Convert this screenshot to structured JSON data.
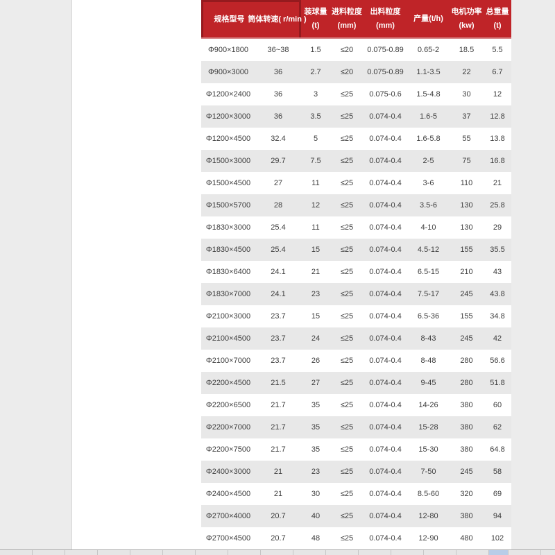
{
  "colors": {
    "header-red": "#bf2428",
    "dark-red": "#951a1e",
    "header-pink": "#d98b8d",
    "stripe-gray": "#e8e8e8",
    "margin-gray": "#ececec",
    "strip-gray": "#e6e6e6",
    "active-blue": "#b9cde8",
    "text-dark": "#3d3d3d"
  },
  "table": {
    "headers": [
      {
        "title": "规格型号",
        "unit": ""
      },
      {
        "title": "筒体转速( r/min )",
        "unit": ""
      },
      {
        "title": "装球量",
        "unit": "(t)"
      },
      {
        "title": "进料粒度",
        "unit": "(mm)"
      },
      {
        "title": "出料粒度",
        "unit": "(mm)"
      },
      {
        "title": "产量(t/h)",
        "unit": ""
      },
      {
        "title": "电机功率",
        "unit": "(kw)"
      },
      {
        "title": "总重量",
        "unit": "(t)"
      }
    ],
    "rows": [
      [
        "Φ900×1800",
        "36~38",
        "1.5",
        "≤20",
        "0.075-0.89",
        "0.65-2",
        "18.5",
        "5.5"
      ],
      [
        "Φ900×3000",
        "36",
        "2.7",
        "≤20",
        "0.075-0.89",
        "1.1-3.5",
        "22",
        "6.7"
      ],
      [
        "Φ1200×2400",
        "36",
        "3",
        "≤25",
        "0.075-0.6",
        "1.5-4.8",
        "30",
        "12"
      ],
      [
        "Φ1200×3000",
        "36",
        "3.5",
        "≤25",
        "0.074-0.4",
        "1.6-5",
        "37",
        "12.8"
      ],
      [
        "Φ1200×4500",
        "32.4",
        "5",
        "≤25",
        "0.074-0.4",
        "1.6-5.8",
        "55",
        "13.8"
      ],
      [
        "Φ1500×3000",
        "29.7",
        "7.5",
        "≤25",
        "0.074-0.4",
        "2-5",
        "75",
        "16.8"
      ],
      [
        "Φ1500×4500",
        "27",
        "11",
        "≤25",
        "0.074-0.4",
        "3-6",
        "110",
        "21"
      ],
      [
        "Φ1500×5700",
        "28",
        "12",
        "≤25",
        "0.074-0.4",
        "3.5-6",
        "130",
        "25.8"
      ],
      [
        "Φ1830×3000",
        "25.4",
        "11",
        "≤25",
        "0.074-0.4",
        "4-10",
        "130",
        "29"
      ],
      [
        "Φ1830×4500",
        "25.4",
        "15",
        "≤25",
        "0.074-0.4",
        "4.5-12",
        "155",
        "35.5"
      ],
      [
        "Φ1830×6400",
        "24.1",
        "21",
        "≤25",
        "0.074-0.4",
        "6.5-15",
        "210",
        "43"
      ],
      [
        "Φ1830×7000",
        "24.1",
        "23",
        "≤25",
        "0.074-0.4",
        "7.5-17",
        "245",
        "43.8"
      ],
      [
        "Φ2100×3000",
        "23.7",
        "15",
        "≤25",
        "0.074-0.4",
        "6.5-36",
        "155",
        "34.8"
      ],
      [
        "Φ2100×4500",
        "23.7",
        "24",
        "≤25",
        "0.074-0.4",
        "8-43",
        "245",
        "42"
      ],
      [
        "Φ2100×7000",
        "23.7",
        "26",
        "≤25",
        "0.074-0.4",
        "8-48",
        "280",
        "56.6"
      ],
      [
        "Φ2200×4500",
        "21.5",
        "27",
        "≤25",
        "0.074-0.4",
        "9-45",
        "280",
        "51.8"
      ],
      [
        "Φ2200×6500",
        "21.7",
        "35",
        "≤25",
        "0.074-0.4",
        "14-26",
        "380",
        "60"
      ],
      [
        "Φ2200×7000",
        "21.7",
        "35",
        "≤25",
        "0.074-0.4",
        "15-28",
        "380",
        "62"
      ],
      [
        "Φ2200×7500",
        "21.7",
        "35",
        "≤25",
        "0.074-0.4",
        "15-30",
        "380",
        "64.8"
      ],
      [
        "Φ2400×3000",
        "21",
        "23",
        "≤25",
        "0.074-0.4",
        "7-50",
        "245",
        "58"
      ],
      [
        "Φ2400×4500",
        "21",
        "30",
        "≤25",
        "0.074-0.4",
        "8.5-60",
        "320",
        "69"
      ],
      [
        "Φ2700×4000",
        "20.7",
        "40",
        "≤25",
        "0.074-0.4",
        "12-80",
        "380",
        "94"
      ],
      [
        "Φ2700×4500",
        "20.7",
        "48",
        "≤25",
        "0.074-0.4",
        "12-90",
        "480",
        "102"
      ]
    ]
  }
}
